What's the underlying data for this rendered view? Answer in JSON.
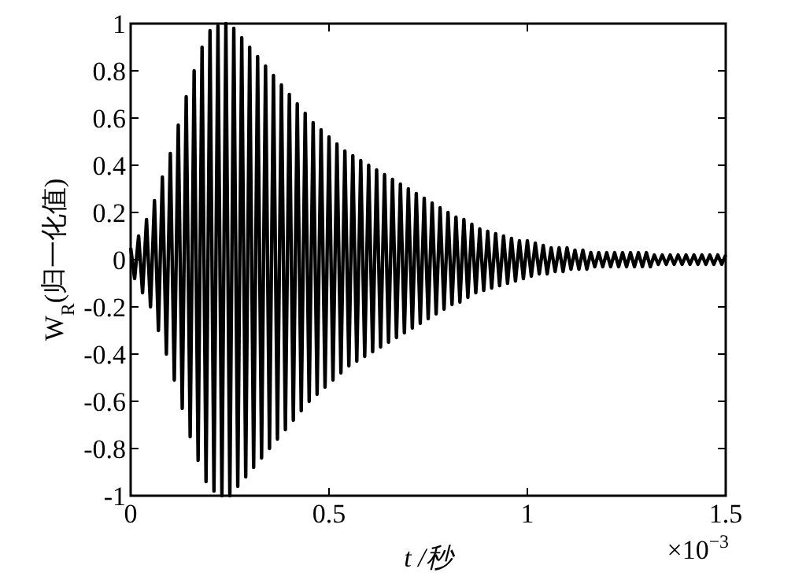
{
  "chart_data": {
    "type": "line",
    "xlabel": "t /秒",
    "ylabel": "W$_{R}$(归一化值)",
    "annotations": [
      "×10$^{−3}$"
    ],
    "xlim": [
      0,
      1.5
    ],
    "ylim": [
      -1,
      1
    ],
    "xticks": [
      0,
      0.5,
      1,
      1.5
    ],
    "yticks": [
      -1,
      -0.8,
      -0.6,
      -0.4,
      -0.2,
      0,
      0.2,
      0.4,
      0.6,
      0.8,
      1
    ],
    "grid": false,
    "marker": "none",
    "line_style": "solid",
    "series": [
      {
        "color": "#000000",
        "x": [
          0,
          0.01,
          0.02,
          0.03,
          0.04,
          0.05,
          0.06,
          0.07,
          0.08,
          0.09,
          0.1,
          0.11,
          0.12,
          0.13,
          0.14,
          0.15,
          0.16,
          0.17,
          0.18,
          0.19,
          0.2,
          0.21,
          0.22,
          0.23,
          0.24,
          0.25,
          0.26,
          0.27,
          0.28,
          0.29,
          0.3,
          0.31,
          0.32,
          0.33,
          0.34,
          0.35,
          0.36,
          0.37,
          0.38,
          0.39,
          0.4,
          0.41,
          0.42,
          0.43,
          0.44,
          0.45,
          0.46,
          0.47,
          0.48,
          0.49,
          0.5,
          0.51,
          0.52,
          0.53,
          0.54,
          0.55,
          0.56,
          0.57,
          0.58,
          0.59,
          0.6,
          0.61,
          0.62,
          0.63,
          0.64,
          0.65,
          0.66,
          0.67,
          0.68,
          0.69,
          0.7,
          0.71,
          0.72,
          0.73,
          0.74,
          0.75,
          0.76,
          0.77,
          0.78,
          0.79,
          0.8,
          0.81,
          0.82,
          0.83,
          0.84,
          0.85,
          0.86,
          0.87,
          0.88,
          0.89,
          0.9,
          0.91,
          0.92,
          0.93,
          0.94,
          0.95,
          0.96,
          0.97,
          0.98,
          0.99,
          1,
          1.01,
          1.02,
          1.03,
          1.04,
          1.05,
          1.06,
          1.07,
          1.08,
          1.09,
          1.1,
          1.11,
          1.12,
          1.13,
          1.14,
          1.15,
          1.16,
          1.17,
          1.18,
          1.19,
          1.2,
          1.21,
          1.22,
          1.23,
          1.24,
          1.25,
          1.26,
          1.27,
          1.28,
          1.29,
          1.3,
          1.31,
          1.32,
          1.33,
          1.34,
          1.35,
          1.36,
          1.37,
          1.38,
          1.39,
          1.4,
          1.41,
          1.42,
          1.43,
          1.44,
          1.45,
          1.46,
          1.47,
          1.48,
          1.49,
          1.5
        ],
        "values": [
          0.05,
          -0.08,
          0.1,
          -0.14,
          0.17,
          -0.2,
          0.25,
          -0.3,
          0.35,
          -0.4,
          0.45,
          -0.51,
          0.57,
          -0.63,
          0.69,
          -0.75,
          0.8,
          -0.85,
          0.9,
          -0.94,
          0.97,
          -0.98,
          0.99,
          -1,
          1,
          -1,
          0.98,
          -0.96,
          0.94,
          -0.92,
          0.9,
          -0.88,
          0.86,
          -0.84,
          0.82,
          -0.8,
          0.78,
          -0.76,
          0.74,
          -0.72,
          0.7,
          -0.68,
          0.66,
          -0.64,
          0.62,
          -0.6,
          0.58,
          -0.57,
          0.55,
          -0.54,
          0.52,
          -0.51,
          0.49,
          -0.48,
          0.46,
          -0.45,
          0.44,
          -0.43,
          0.42,
          -0.41,
          0.4,
          -0.39,
          0.38,
          -0.37,
          0.36,
          -0.35,
          0.34,
          -0.33,
          0.32,
          -0.31,
          0.3,
          -0.29,
          0.28,
          -0.27,
          0.26,
          -0.25,
          0.24,
          -0.23,
          0.22,
          -0.21,
          0.2,
          -0.19,
          0.18,
          -0.18,
          0.17,
          -0.16,
          0.15,
          -0.14,
          0.13,
          -0.13,
          0.12,
          -0.12,
          0.11,
          -0.11,
          0.1,
          -0.1,
          0.09,
          -0.09,
          0.08,
          -0.08,
          0.08,
          -0.07,
          0.07,
          -0.06,
          0.06,
          -0.06,
          0.05,
          -0.05,
          0.05,
          -0.05,
          0.05,
          -0.04,
          0.04,
          -0.04,
          0.04,
          -0.04,
          0.03,
          -0.03,
          0.03,
          -0.03,
          0.03,
          -0.03,
          0.03,
          -0.03,
          0.03,
          -0.03,
          0.03,
          -0.03,
          0.03,
          -0.03,
          0.03,
          -0.03,
          0.02,
          -0.02,
          0.02,
          -0.02,
          0.02,
          -0.02,
          0.02,
          -0.02,
          0.02,
          -0.02,
          0.02,
          -0.02,
          0.02,
          -0.02,
          0.02,
          -0.02,
          0.02,
          -0.02,
          0.02
        ]
      }
    ]
  }
}
